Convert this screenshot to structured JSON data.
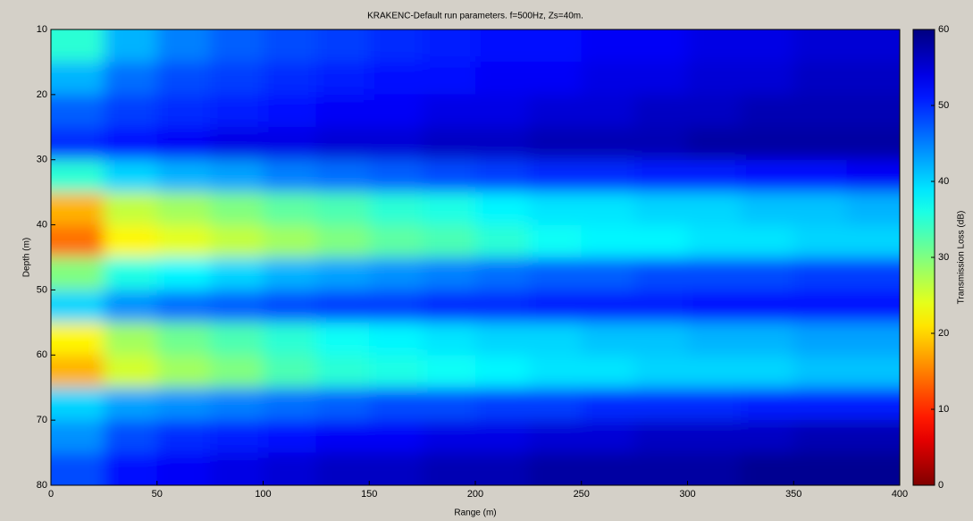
{
  "chart_data": {
    "type": "heatmap",
    "title": "KRAKENC-Default run parameters. f=500Hz, Zs=40m.",
    "x_label": "Range (m)",
    "y_label": "Depth (m)",
    "colorbar_label": "Transmission Loss (dB)",
    "colormap": "jet_reversed",
    "x_edges": [
      0,
      25,
      50,
      75,
      100,
      125,
      150,
      175,
      200,
      225,
      250,
      275,
      300,
      325,
      350,
      375,
      400
    ],
    "y_edges": [
      10,
      15,
      20,
      25,
      30,
      35,
      40,
      45,
      50,
      55,
      60,
      65,
      70,
      75,
      80
    ],
    "values": [
      [
        35,
        42,
        45,
        47,
        48,
        49,
        50,
        51,
        52,
        52,
        53,
        53,
        54,
        54,
        55,
        55
      ],
      [
        42,
        46,
        48,
        49,
        50,
        51,
        52,
        52,
        53,
        53,
        54,
        54,
        55,
        55,
        56,
        56
      ],
      [
        47,
        49,
        50,
        51,
        52,
        53,
        53,
        54,
        54,
        55,
        55,
        56,
        56,
        57,
        57,
        57
      ],
      [
        50,
        52,
        53,
        54,
        54,
        55,
        55,
        56,
        56,
        57,
        57,
        57,
        58,
        58,
        58,
        58
      ],
      [
        35,
        40,
        42,
        43,
        45,
        46,
        47,
        48,
        49,
        50,
        50,
        51,
        51,
        52,
        52,
        53
      ],
      [
        18,
        26,
        28,
        30,
        32,
        33,
        35,
        36,
        38,
        39,
        39,
        40,
        40,
        41,
        41,
        42
      ],
      [
        14,
        22,
        24,
        26,
        28,
        30,
        32,
        33,
        35,
        37,
        38,
        38,
        39,
        39,
        40,
        40
      ],
      [
        30,
        36,
        38,
        40,
        42,
        43,
        44,
        45,
        46,
        47,
        47,
        48,
        48,
        48,
        49,
        49
      ],
      [
        40,
        44,
        46,
        47,
        48,
        49,
        49,
        50,
        50,
        51,
        51,
        51,
        52,
        52,
        52,
        52
      ],
      [
        22,
        28,
        31,
        33,
        35,
        37,
        38,
        39,
        40,
        40,
        41,
        41,
        42,
        42,
        43,
        43
      ],
      [
        18,
        25,
        28,
        30,
        33,
        35,
        36,
        37,
        38,
        39,
        39,
        40,
        40,
        40,
        41,
        41
      ],
      [
        40,
        43,
        44,
        45,
        46,
        47,
        48,
        48,
        49,
        49,
        50,
        50,
        50,
        51,
        51,
        51
      ],
      [
        44,
        48,
        50,
        51,
        52,
        53,
        53,
        54,
        54,
        55,
        55,
        56,
        56,
        56,
        57,
        57
      ],
      [
        48,
        52,
        53,
        54,
        55,
        56,
        56,
        57,
        57,
        58,
        58,
        58,
        58,
        59,
        59,
        59
      ]
    ],
    "xlim": [
      0,
      400
    ],
    "xticks": [
      0,
      50,
      100,
      150,
      200,
      250,
      300,
      350,
      400
    ],
    "ylim": [
      10,
      80
    ],
    "yticks": [
      10,
      20,
      30,
      40,
      50,
      60,
      70,
      80
    ],
    "y_reversed": true,
    "clim": [
      0,
      60
    ],
    "cticks": [
      0,
      10,
      20,
      30,
      40,
      50,
      60
    ]
  }
}
